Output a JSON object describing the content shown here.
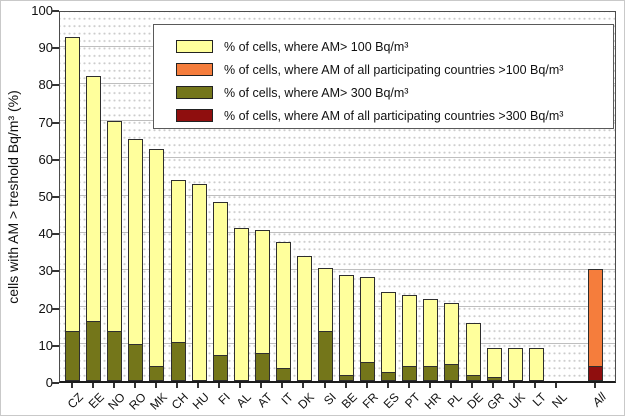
{
  "figure": {
    "y_axis_title": "cells with AM > treshold Bq/m³ (%)"
  },
  "chart_data": {
    "type": "bar",
    "title": "",
    "xlabel": "",
    "ylabel": "cells with AM > treshold Bq/m³ (%)",
    "ylim": [
      0,
      100
    ],
    "y_ticks": [
      0,
      10,
      20,
      30,
      40,
      50,
      60,
      70,
      80,
      90,
      100
    ],
    "grid": "solid horizontal major lines every 10, dotted minor rows every 2",
    "legend_position": "top-right inside plot",
    "bar_style": "overlay: darker series drawn at bottom of lighter series, same bar width",
    "categories": [
      "CZ",
      "EE",
      "NO",
      "RO",
      "MK",
      "CH",
      "HU",
      "FI",
      "AL",
      "AT",
      "IT",
      "DK",
      "SI",
      "BE",
      "FR",
      "ES",
      "PT",
      "HR",
      "PL",
      "DE",
      "GR",
      "UK",
      "LT",
      "NL",
      "All"
    ],
    "series": [
      {
        "name": "% of cells, where AM> 100 Bq/m³",
        "color": "#FFFF9C",
        "values": [
          92.5,
          82,
          70,
          65,
          62.5,
          54,
          53,
          48,
          41,
          40.5,
          37.5,
          33.5,
          30.5,
          28.5,
          28,
          24,
          23,
          22,
          21,
          15.5,
          9,
          9,
          9,
          0,
          null
        ]
      },
      {
        "name": "% of cells, where AM of all participating countries >100  Bq/m³",
        "color": "#F57D3C",
        "values": [
          null,
          null,
          null,
          null,
          null,
          null,
          null,
          null,
          null,
          null,
          null,
          null,
          null,
          null,
          null,
          null,
          null,
          null,
          null,
          null,
          null,
          null,
          null,
          null,
          30
        ]
      },
      {
        "name": "% of cells, where AM> 300 Bq/m³",
        "color": "#74761A",
        "values": [
          13.5,
          16,
          13.5,
          10,
          4,
          10.5,
          0,
          7,
          0,
          7.5,
          3.5,
          0,
          13.5,
          1.5,
          5,
          2.5,
          4,
          4,
          4.5,
          1.5,
          1,
          0,
          0,
          0,
          null
        ]
      },
      {
        "name": "% of cells, where AM of all participating countries >300  Bq/m³",
        "color": "#8F0E0E",
        "values": [
          null,
          null,
          null,
          null,
          null,
          null,
          null,
          null,
          null,
          null,
          null,
          null,
          null,
          null,
          null,
          null,
          null,
          null,
          null,
          null,
          null,
          null,
          null,
          null,
          4
        ]
      }
    ]
  }
}
